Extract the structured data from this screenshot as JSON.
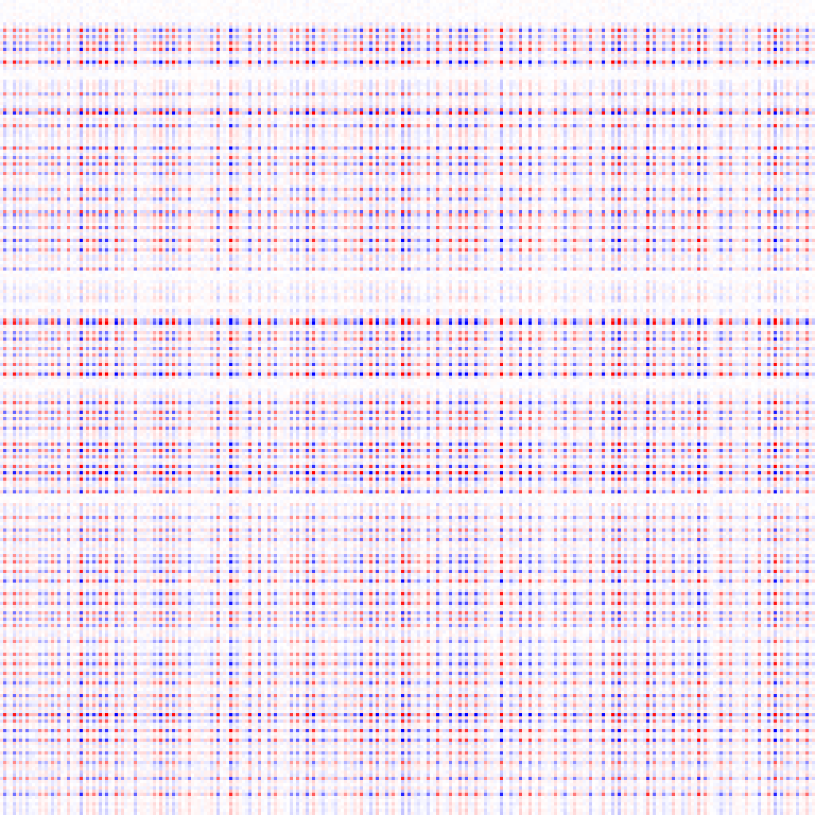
{
  "chart_data": {
    "type": "heatmap",
    "title": "",
    "xlabel": "",
    "ylabel": "",
    "rows": 256,
    "cols": 256,
    "colormap": "bwr",
    "value_range": [
      -1,
      1
    ],
    "colors": {
      "negative": "#0000ff",
      "neutral": "#ffffff",
      "positive": "#ff0000",
      "background": "#fafaff"
    },
    "grid": false,
    "legend": "none",
    "row_profile": {
      "active_rows_approx": [
        9,
        11,
        13,
        15,
        19,
        29,
        34,
        35,
        39,
        46,
        49,
        51,
        54,
        59,
        62,
        66,
        67,
        71,
        75,
        78,
        84,
        100,
        101,
        104,
        106,
        109,
        111,
        114,
        117,
        126,
        129,
        131,
        134,
        139,
        141,
        143,
        146,
        148,
        150,
        154,
        162,
        166,
        169,
        174,
        176,
        179,
        182,
        186,
        189,
        192,
        194,
        196,
        201,
        205,
        208,
        211,
        214,
        218,
        221,
        224,
        226,
        229,
        232,
        236,
        239,
        244,
        249
      ],
      "strong_rows_approx": [
        19,
        35,
        101,
        117,
        148,
        224
      ]
    },
    "column_profile": {
      "active_cols_approx": [
        1,
        4,
        6,
        8,
        12,
        14,
        16,
        18,
        21,
        25,
        27,
        29,
        31,
        33,
        36,
        38,
        42,
        48,
        50,
        52,
        54,
        56,
        59,
        66,
        68,
        72,
        74,
        78,
        81,
        84,
        86,
        91,
        93,
        96,
        98,
        101,
        105,
        108,
        111,
        113,
        116,
        118,
        121,
        123,
        126,
        128,
        131,
        134,
        137,
        141,
        144,
        146,
        149,
        152,
        157,
        160,
        163,
        166,
        169,
        174,
        177,
        180,
        185,
        189,
        192,
        194,
        196,
        199,
        203,
        205,
        208,
        211,
        214,
        216,
        219,
        221,
        226,
        229,
        234,
        238,
        241,
        243,
        245,
        247,
        250,
        253
      ],
      "strong_cols_approx": [
        25,
        72,
        126,
        157,
        194,
        203,
        219,
        243
      ]
    }
  }
}
